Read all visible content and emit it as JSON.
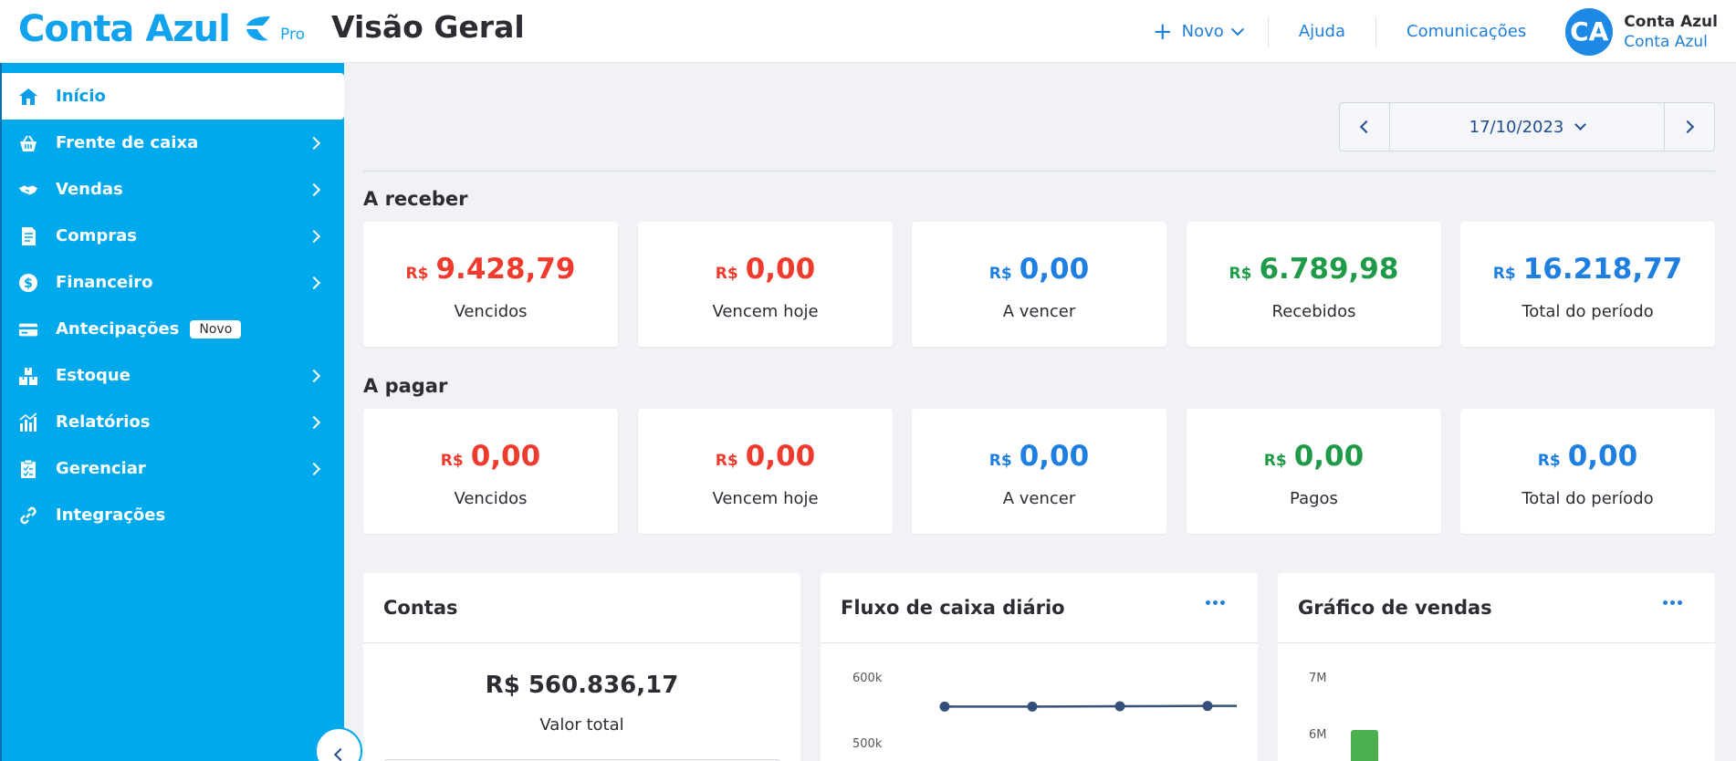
{
  "header": {
    "brand": "Conta Azul",
    "plan": "Pro",
    "page_title": "Visão Geral",
    "new_label": "Novo",
    "help_label": "Ajuda",
    "comms_label": "Comunicações",
    "avatar_initials": "CA",
    "user_name": "Conta Azul",
    "user_company": "Conta Azul"
  },
  "sidebar": {
    "items": [
      {
        "label": "Início",
        "icon": "home-icon",
        "active": true
      },
      {
        "label": "Frente de caixa",
        "icon": "basket-icon",
        "chevron": true
      },
      {
        "label": "Vendas",
        "icon": "handshake-icon",
        "chevron": true
      },
      {
        "label": "Compras",
        "icon": "receipt-icon",
        "chevron": true
      },
      {
        "label": "Financeiro",
        "icon": "dollar-icon",
        "chevron": true
      },
      {
        "label": "Antecipações",
        "icon": "card-icon",
        "badge": "Novo"
      },
      {
        "label": "Estoque",
        "icon": "boxes-icon",
        "chevron": true
      },
      {
        "label": "Relatórios",
        "icon": "report-icon",
        "chevron": true
      },
      {
        "label": "Gerenciar",
        "icon": "clipboard-icon",
        "chevron": true
      },
      {
        "label": "Integrações",
        "icon": "link-icon"
      }
    ]
  },
  "date_nav": {
    "date": "17/10/2023"
  },
  "receivable": {
    "title": "A receber",
    "currency": "R$",
    "cards": [
      {
        "value": "9.428,79",
        "label": "Vencidos",
        "color": "#ef3b2d"
      },
      {
        "value": "0,00",
        "label": "Vencem hoje",
        "color": "#ef3b2d"
      },
      {
        "value": "0,00",
        "label": "A vencer",
        "color": "#1e7fe0"
      },
      {
        "value": "6.789,98",
        "label": "Recebidos",
        "color": "#1f9a49"
      },
      {
        "value": "16.218,77",
        "label": "Total do período",
        "color": "#1e7fe0"
      }
    ]
  },
  "payable": {
    "title": "A pagar",
    "currency": "R$",
    "cards": [
      {
        "value": "0,00",
        "label": "Vencidos",
        "color": "#ef3b2d"
      },
      {
        "value": "0,00",
        "label": "Vencem hoje",
        "color": "#ef3b2d"
      },
      {
        "value": "0,00",
        "label": "A vencer",
        "color": "#1e7fe0"
      },
      {
        "value": "0,00",
        "label": "Pagos",
        "color": "#1f9a49"
      },
      {
        "value": "0,00",
        "label": "Total do período",
        "color": "#1e7fe0"
      }
    ]
  },
  "accounts_panel": {
    "title": "Contas",
    "total_value": "R$ 560.836,17",
    "total_label": "Valor total"
  },
  "cashflow_panel": {
    "title": "Fluxo de caixa diário"
  },
  "sales_panel": {
    "title": "Gráfico de vendas"
  },
  "chart_data": [
    {
      "type": "line",
      "title": "Fluxo de caixa diário",
      "y_ticks": [
        "600k",
        "500k"
      ],
      "ylim": [
        500000,
        600000
      ],
      "series": [
        {
          "values": [
            555000,
            555000,
            555500,
            556000
          ]
        }
      ]
    },
    {
      "type": "bar",
      "title": "Gráfico de vendas",
      "y_ticks": [
        "7M",
        "6M"
      ],
      "ylim": [
        6000000,
        7000000
      ],
      "series": [
        {
          "values": [
            6000000
          ]
        }
      ],
      "bar_color": "#4caf50"
    }
  ]
}
